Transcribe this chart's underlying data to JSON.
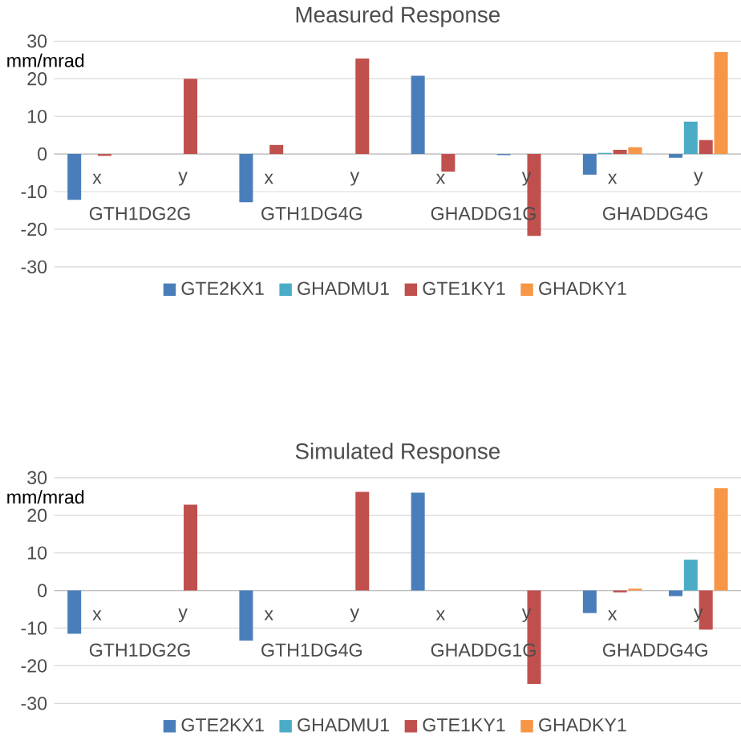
{
  "chart_data": [
    {
      "type": "bar",
      "title": "Measured Response",
      "ylabel": "mm/mrad",
      "categories": [
        "x",
        "y",
        "x",
        "y",
        "x",
        "y",
        "x",
        "y"
      ],
      "annotations": [
        "GTH1DG2G",
        "GTH1DG4G",
        "GHADDG1G",
        "GHADDG4G"
      ],
      "series": [
        {
          "name": "GTE2KX1",
          "color": "#4a7ebb",
          "values": [
            -12.2,
            null,
            -12.8,
            null,
            20.8,
            -0.3,
            -5.5,
            -1.0
          ]
        },
        {
          "name": "GHADMU1",
          "color": "#4bacc6",
          "values": [
            null,
            null,
            null,
            null,
            null,
            null,
            0.3,
            8.6
          ]
        },
        {
          "name": "GTE1KY1",
          "color": "#c0504d",
          "values": [
            -0.5,
            20.0,
            2.4,
            25.4,
            -4.7,
            -21.8,
            1.1,
            3.7
          ]
        },
        {
          "name": "GHADKY1",
          "color": "#f79646",
          "values": [
            null,
            null,
            null,
            null,
            null,
            null,
            1.8,
            27.1
          ]
        }
      ],
      "ylim": [
        -30,
        30
      ],
      "yticks": [
        -30,
        -20,
        -10,
        0,
        10,
        20,
        30
      ],
      "grid": "y",
      "legend": "bottom"
    },
    {
      "type": "bar",
      "title": "Simulated Response",
      "ylabel": "mm/mrad",
      "categories": [
        "x",
        "y",
        "x",
        "y",
        "x",
        "y",
        "x",
        "y"
      ],
      "annotations": [
        "GTH1DG2G",
        "GTH1DG4G",
        "GHADDG1G",
        "GHADDG4G"
      ],
      "series": [
        {
          "name": "GTE2KX1",
          "color": "#4a7ebb",
          "values": [
            -11.5,
            null,
            -13.3,
            null,
            26.0,
            null,
            -6.0,
            -1.5
          ]
        },
        {
          "name": "GHADMU1",
          "color": "#4bacc6",
          "values": [
            null,
            null,
            null,
            null,
            null,
            null,
            null,
            8.2
          ]
        },
        {
          "name": "GTE1KY1",
          "color": "#c0504d",
          "values": [
            null,
            22.8,
            null,
            26.2,
            null,
            -24.8,
            -0.5,
            -10.4
          ]
        },
        {
          "name": "GHADKY1",
          "color": "#f79646",
          "values": [
            null,
            null,
            null,
            null,
            null,
            null,
            0.5,
            27.2
          ]
        }
      ],
      "ylim": [
        -30,
        30
      ],
      "yticks": [
        -30,
        -20,
        -10,
        0,
        10,
        20,
        30
      ],
      "grid": "y",
      "legend": "bottom"
    }
  ]
}
